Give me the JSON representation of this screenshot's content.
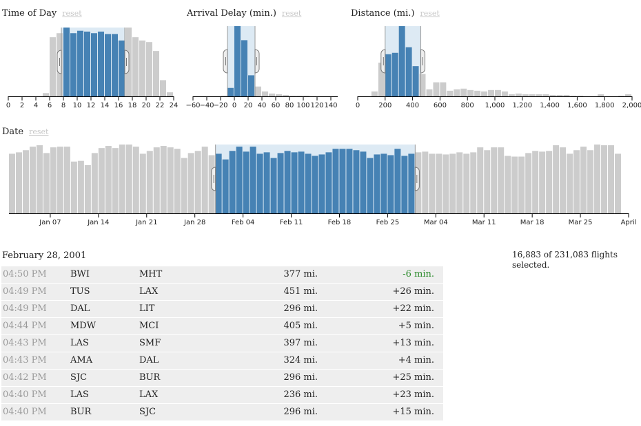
{
  "colors": {
    "selected_bar": "#4682b4",
    "unselected_bar": "#cccccc",
    "brush_fill": "#ddeaf4",
    "early_delay": "#2a8a2a"
  },
  "reset_label": "reset",
  "chart_data": [
    {
      "id": "time",
      "type": "bar",
      "title": "Time of Day",
      "ticks": [
        "0",
        "2",
        "4",
        "6",
        "8",
        "10",
        "12",
        "14",
        "16",
        "18",
        "20",
        "22",
        "24"
      ],
      "tick_values": [
        0,
        2,
        4,
        6,
        8,
        10,
        12,
        14,
        16,
        18,
        20,
        22,
        24
      ],
      "xlim": [
        0,
        24
      ],
      "bin_width": 1,
      "bins": [
        0,
        1,
        2,
        3,
        4,
        5,
        6,
        7,
        8,
        9,
        10,
        11,
        12,
        13,
        14,
        15,
        16,
        17,
        18,
        19,
        20,
        21,
        22,
        23
      ],
      "values": [
        0,
        0,
        0,
        0,
        0,
        4,
        73,
        78,
        85,
        78,
        81,
        80,
        78,
        80,
        77,
        77,
        69,
        85,
        73,
        69,
        67,
        56,
        20,
        5
      ],
      "brush": [
        7.7,
        16.9
      ]
    },
    {
      "id": "delay",
      "type": "bar",
      "title": "Arrival Delay (min.)",
      "ticks": [
        "−60",
        "−40",
        "−20",
        "0",
        "20",
        "40",
        "60",
        "80",
        "100",
        "120",
        "140"
      ],
      "tick_values": [
        -60,
        -40,
        -20,
        0,
        20,
        40,
        60,
        80,
        100,
        120,
        140
      ],
      "xlim": [
        -60,
        150
      ],
      "bin_width": 10,
      "bins": [
        -60,
        -50,
        -40,
        -30,
        -20,
        -10,
        0,
        10,
        20,
        30,
        40,
        50,
        60,
        70,
        80,
        90,
        100,
        110,
        120,
        130,
        140
      ],
      "values": [
        0,
        0,
        0,
        0,
        1,
        12,
        100,
        80,
        30,
        14,
        7,
        4,
        3,
        2,
        1,
        1,
        1,
        0,
        0,
        0,
        0
      ],
      "brush": [
        -10,
        30
      ]
    },
    {
      "id": "distance",
      "type": "bar",
      "title": "Distance (mi.)",
      "ticks": [
        "0",
        "200",
        "400",
        "600",
        "800",
        "1,000",
        "1,200",
        "1,400",
        "1,600",
        "1,800",
        "2,000"
      ],
      "tick_values": [
        0,
        200,
        400,
        600,
        800,
        1000,
        1200,
        1400,
        1600,
        1800,
        2000
      ],
      "xlim": [
        0,
        2000
      ],
      "bin_width": 50,
      "bins": [
        0,
        50,
        100,
        150,
        200,
        250,
        300,
        350,
        400,
        450,
        500,
        550,
        600,
        650,
        700,
        750,
        800,
        850,
        900,
        950,
        1000,
        1050,
        1100,
        1150,
        1200,
        1250,
        1300,
        1350,
        1400,
        1450,
        1500,
        1550,
        1600,
        1650,
        1700,
        1750,
        1800,
        1850,
        1900,
        1950
      ],
      "values": [
        0,
        0,
        7,
        48,
        60,
        62,
        100,
        70,
        43,
        32,
        10,
        20,
        20,
        8,
        10,
        11,
        9,
        8,
        7,
        9,
        9,
        7,
        3,
        4,
        3,
        3,
        3,
        3,
        2,
        2,
        2,
        1,
        1,
        0,
        0,
        3,
        0,
        0,
        1,
        3
      ],
      "brush": [
        200,
        460
      ]
    },
    {
      "id": "date",
      "type": "bar",
      "title": "Date",
      "ticks": [
        "Jan 07",
        "Jan 14",
        "Jan 21",
        "Jan 28",
        "Feb 04",
        "Feb 11",
        "Feb 18",
        "Feb 25",
        "Mar 04",
        "Mar 11",
        "Mar 18",
        "Mar 25",
        "April"
      ],
      "tick_values": [
        "2001-01-07",
        "2001-01-14",
        "2001-01-21",
        "2001-01-28",
        "2001-02-04",
        "2001-02-11",
        "2001-02-18",
        "2001-02-25",
        "2001-03-04",
        "2001-03-11",
        "2001-03-18",
        "2001-03-25",
        "2001-04-01"
      ],
      "xlim": [
        "2001-01-01",
        "2001-04-01"
      ],
      "start_date": "2001-01-01",
      "values": [
        84,
        86,
        89,
        94,
        96,
        85,
        93,
        94,
        94,
        73,
        74,
        68,
        85,
        92,
        95,
        92,
        97,
        97,
        94,
        84,
        88,
        93,
        95,
        93,
        91,
        78,
        85,
        88,
        94,
        82,
        84,
        76,
        88,
        94,
        87,
        94,
        84,
        86,
        78,
        85,
        88,
        86,
        87,
        84,
        81,
        83,
        86,
        91,
        91,
        91,
        89,
        87,
        78,
        83,
        84,
        82,
        91,
        81,
        84,
        86,
        87,
        84,
        84,
        83,
        84,
        86,
        84,
        86,
        93,
        89,
        93,
        93,
        81,
        80,
        80,
        85,
        88,
        87,
        88,
        96,
        93,
        84,
        89,
        94,
        89,
        97,
        96,
        96,
        84
      ],
      "brush": [
        "2001-01-31",
        "2001-03-01"
      ]
    }
  ],
  "flights": {
    "date_heading": "February 28, 2001",
    "rows": [
      {
        "time": "04:50 PM",
        "origin": "BWI",
        "destination": "MHT",
        "distance": "377 mi.",
        "delay": "-6 min.",
        "early": true
      },
      {
        "time": "04:49 PM",
        "origin": "TUS",
        "destination": "LAX",
        "distance": "451 mi.",
        "delay": "+26 min.",
        "early": false
      },
      {
        "time": "04:49 PM",
        "origin": "DAL",
        "destination": "LIT",
        "distance": "296 mi.",
        "delay": "+22 min.",
        "early": false
      },
      {
        "time": "04:44 PM",
        "origin": "MDW",
        "destination": "MCI",
        "distance": "405 mi.",
        "delay": "+5 min.",
        "early": false
      },
      {
        "time": "04:43 PM",
        "origin": "LAS",
        "destination": "SMF",
        "distance": "397 mi.",
        "delay": "+13 min.",
        "early": false
      },
      {
        "time": "04:43 PM",
        "origin": "AMA",
        "destination": "DAL",
        "distance": "324 mi.",
        "delay": "+4 min.",
        "early": false
      },
      {
        "time": "04:42 PM",
        "origin": "SJC",
        "destination": "BUR",
        "distance": "296 mi.",
        "delay": "+25 min.",
        "early": false
      },
      {
        "time": "04:40 PM",
        "origin": "LAS",
        "destination": "LAX",
        "distance": "236 mi.",
        "delay": "+23 min.",
        "early": false
      },
      {
        "time": "04:40 PM",
        "origin": "BUR",
        "destination": "SJC",
        "distance": "296 mi.",
        "delay": "+15 min.",
        "early": false
      }
    ]
  },
  "summary": {
    "selected": "16,883",
    "of_label": "of",
    "total": "231,083",
    "suffix": "flights selected."
  }
}
